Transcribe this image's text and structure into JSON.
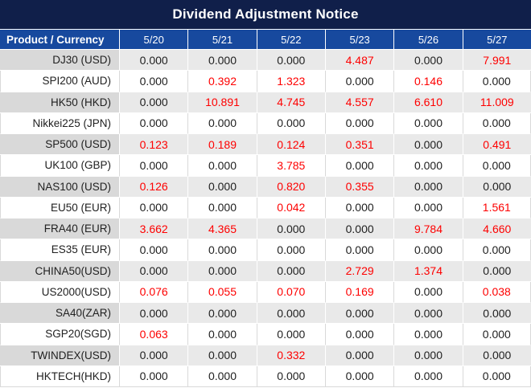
{
  "title": "Dividend Adjustment Notice",
  "chart_data": {
    "type": "table",
    "title": "Dividend Adjustment Notice",
    "columns": [
      "Product / Currency",
      "5/20",
      "5/21",
      "5/22",
      "5/23",
      "5/26",
      "5/27"
    ],
    "rows": [
      {
        "product": "DJ30 (USD)",
        "values": [
          "0.000",
          "0.000",
          "0.000",
          "4.487",
          "0.000",
          "7.991"
        ]
      },
      {
        "product": "SPI200 (AUD)",
        "values": [
          "0.000",
          "0.392",
          "1.323",
          "0.000",
          "0.146",
          "0.000"
        ]
      },
      {
        "product": "HK50 (HKD)",
        "values": [
          "0.000",
          "10.891",
          "4.745",
          "4.557",
          "6.610",
          "11.009"
        ]
      },
      {
        "product": "Nikkei225 (JPN)",
        "values": [
          "0.000",
          "0.000",
          "0.000",
          "0.000",
          "0.000",
          "0.000"
        ]
      },
      {
        "product": "SP500 (USD)",
        "values": [
          "0.123",
          "0.189",
          "0.124",
          "0.351",
          "0.000",
          "0.491"
        ]
      },
      {
        "product": "UK100 (GBP)",
        "values": [
          "0.000",
          "0.000",
          "3.785",
          "0.000",
          "0.000",
          "0.000"
        ]
      },
      {
        "product": "NAS100 (USD)",
        "values": [
          "0.126",
          "0.000",
          "0.820",
          "0.355",
          "0.000",
          "0.000"
        ]
      },
      {
        "product": "EU50 (EUR)",
        "values": [
          "0.000",
          "0.000",
          "0.042",
          "0.000",
          "0.000",
          "1.561"
        ]
      },
      {
        "product": "FRA40 (EUR)",
        "values": [
          "3.662",
          "4.365",
          "0.000",
          "0.000",
          "9.784",
          "4.660"
        ]
      },
      {
        "product": "ES35 (EUR)",
        "values": [
          "0.000",
          "0.000",
          "0.000",
          "0.000",
          "0.000",
          "0.000"
        ]
      },
      {
        "product": "CHINA50(USD)",
        "values": [
          "0.000",
          "0.000",
          "0.000",
          "2.729",
          "1.374",
          "0.000"
        ]
      },
      {
        "product": "US2000(USD)",
        "values": [
          "0.076",
          "0.055",
          "0.070",
          "0.169",
          "0.000",
          "0.038"
        ]
      },
      {
        "product": "SA40(ZAR)",
        "values": [
          "0.000",
          "0.000",
          "0.000",
          "0.000",
          "0.000",
          "0.000"
        ]
      },
      {
        "product": "SGP20(SGD)",
        "values": [
          "0.063",
          "0.000",
          "0.000",
          "0.000",
          "0.000",
          "0.000"
        ]
      },
      {
        "product": "TWINDEX(USD)",
        "values": [
          "0.000",
          "0.000",
          "0.332",
          "0.000",
          "0.000",
          "0.000"
        ]
      },
      {
        "product": "HKTECH(HKD)",
        "values": [
          "0.000",
          "0.000",
          "0.000",
          "0.000",
          "0.000",
          "0.000"
        ]
      }
    ],
    "layout_hints": {
      "zero_value_text": "0.000",
      "highlight_rule": "non-zero values rendered in red",
      "row_striping": "odd rows shaded gray, even rows white"
    }
  },
  "colors": {
    "title_bg": "#101f4a",
    "header_bg": "#17499e",
    "row_shaded_product_bg": "#d9d9d9",
    "row_shaded_value_bg": "#e9e9e9",
    "row_plain_bg": "#ffffff",
    "gridline": "#d9d9d9",
    "value_text": "#212121",
    "highlight_red": "#fe0000"
  }
}
